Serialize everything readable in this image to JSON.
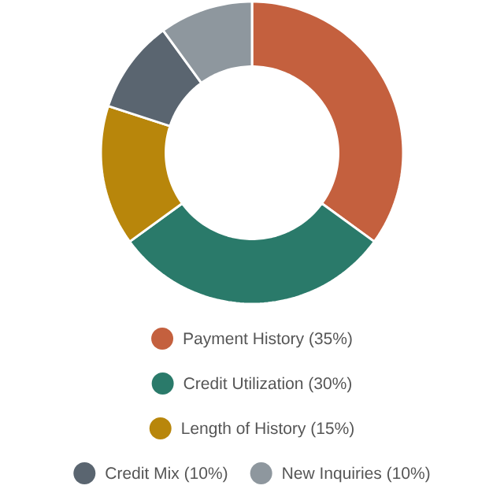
{
  "chart_data": {
    "type": "donut",
    "categories": [
      "Payment History (35%)",
      "Credit Utilization (30%)",
      "Length of History (15%)",
      "Credit Mix (10%)",
      "New Inquiries (10%)"
    ],
    "values": [
      35,
      30,
      15,
      10,
      10
    ],
    "colors": [
      "#c4603e",
      "#2a7a6a",
      "#b8860b",
      "#5a6570",
      "#8e979e"
    ],
    "legend": "bottom"
  }
}
